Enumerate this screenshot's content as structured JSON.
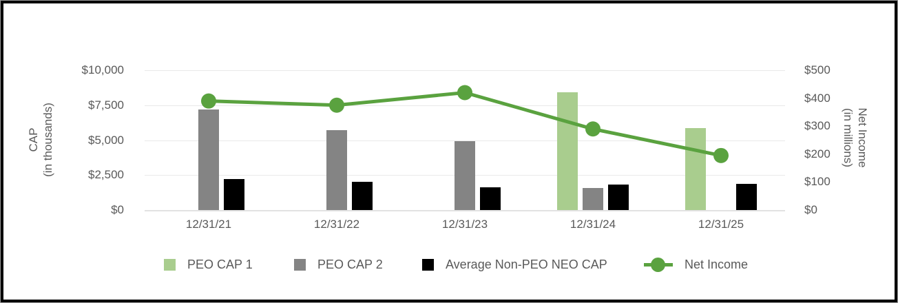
{
  "chart_data": {
    "type": "bar",
    "subtype": "grouped-bar-with-line-combo",
    "title": "",
    "categories": [
      "12/31/21",
      "12/31/22",
      "12/31/23",
      "12/31/24",
      "12/31/25"
    ],
    "series": [
      {
        "name": "PEO CAP 1",
        "color": "#a9cd8e",
        "axis": "left",
        "values": [
          null,
          null,
          null,
          8400,
          5850
        ]
      },
      {
        "name": "PEO CAP 2",
        "color": "#848484",
        "axis": "left",
        "values": [
          7200,
          5700,
          4950,
          1600,
          null
        ]
      },
      {
        "name": "Average Non-PEO NEO CAP",
        "color": "#000000",
        "axis": "left",
        "values": [
          2200,
          2000,
          1650,
          1800,
          1850
        ]
      }
    ],
    "line": {
      "name": "Net Income",
      "color": "#5aa23f",
      "axis": "right",
      "values": [
        390,
        375,
        420,
        290,
        195
      ]
    },
    "left_axis": {
      "title_lines": [
        "CAP",
        "(in thousands)"
      ],
      "ticks": [
        "$10,000",
        "$7,500",
        "$5,000",
        "$2,500",
        "$0"
      ],
      "tick_values": [
        10000,
        7500,
        5000,
        2500,
        0
      ],
      "min": 0,
      "max": 10000
    },
    "right_axis": {
      "title_lines": [
        "Net Income",
        "(in millions)"
      ],
      "ticks": [
        "$500",
        "$400",
        "$300",
        "$200",
        "$100",
        "$0"
      ],
      "tick_values": [
        500,
        400,
        300,
        200,
        100,
        0
      ],
      "min": 0,
      "max": 500
    },
    "legend": [
      {
        "label": "PEO CAP 1",
        "marker": "square",
        "color": "#a9cd8e"
      },
      {
        "label": "PEO CAP 2",
        "marker": "square",
        "color": "#848484"
      },
      {
        "label": "Average Non-PEO NEO CAP",
        "marker": "square",
        "color": "#000000"
      },
      {
        "label": "Net Income",
        "marker": "line-dot",
        "color": "#5aa23f"
      }
    ],
    "layout_hints": {
      "grid": "horizontal",
      "legend_position": "bottom",
      "gridline_color": "#e9e9e9",
      "text_color": "#595959"
    }
  }
}
